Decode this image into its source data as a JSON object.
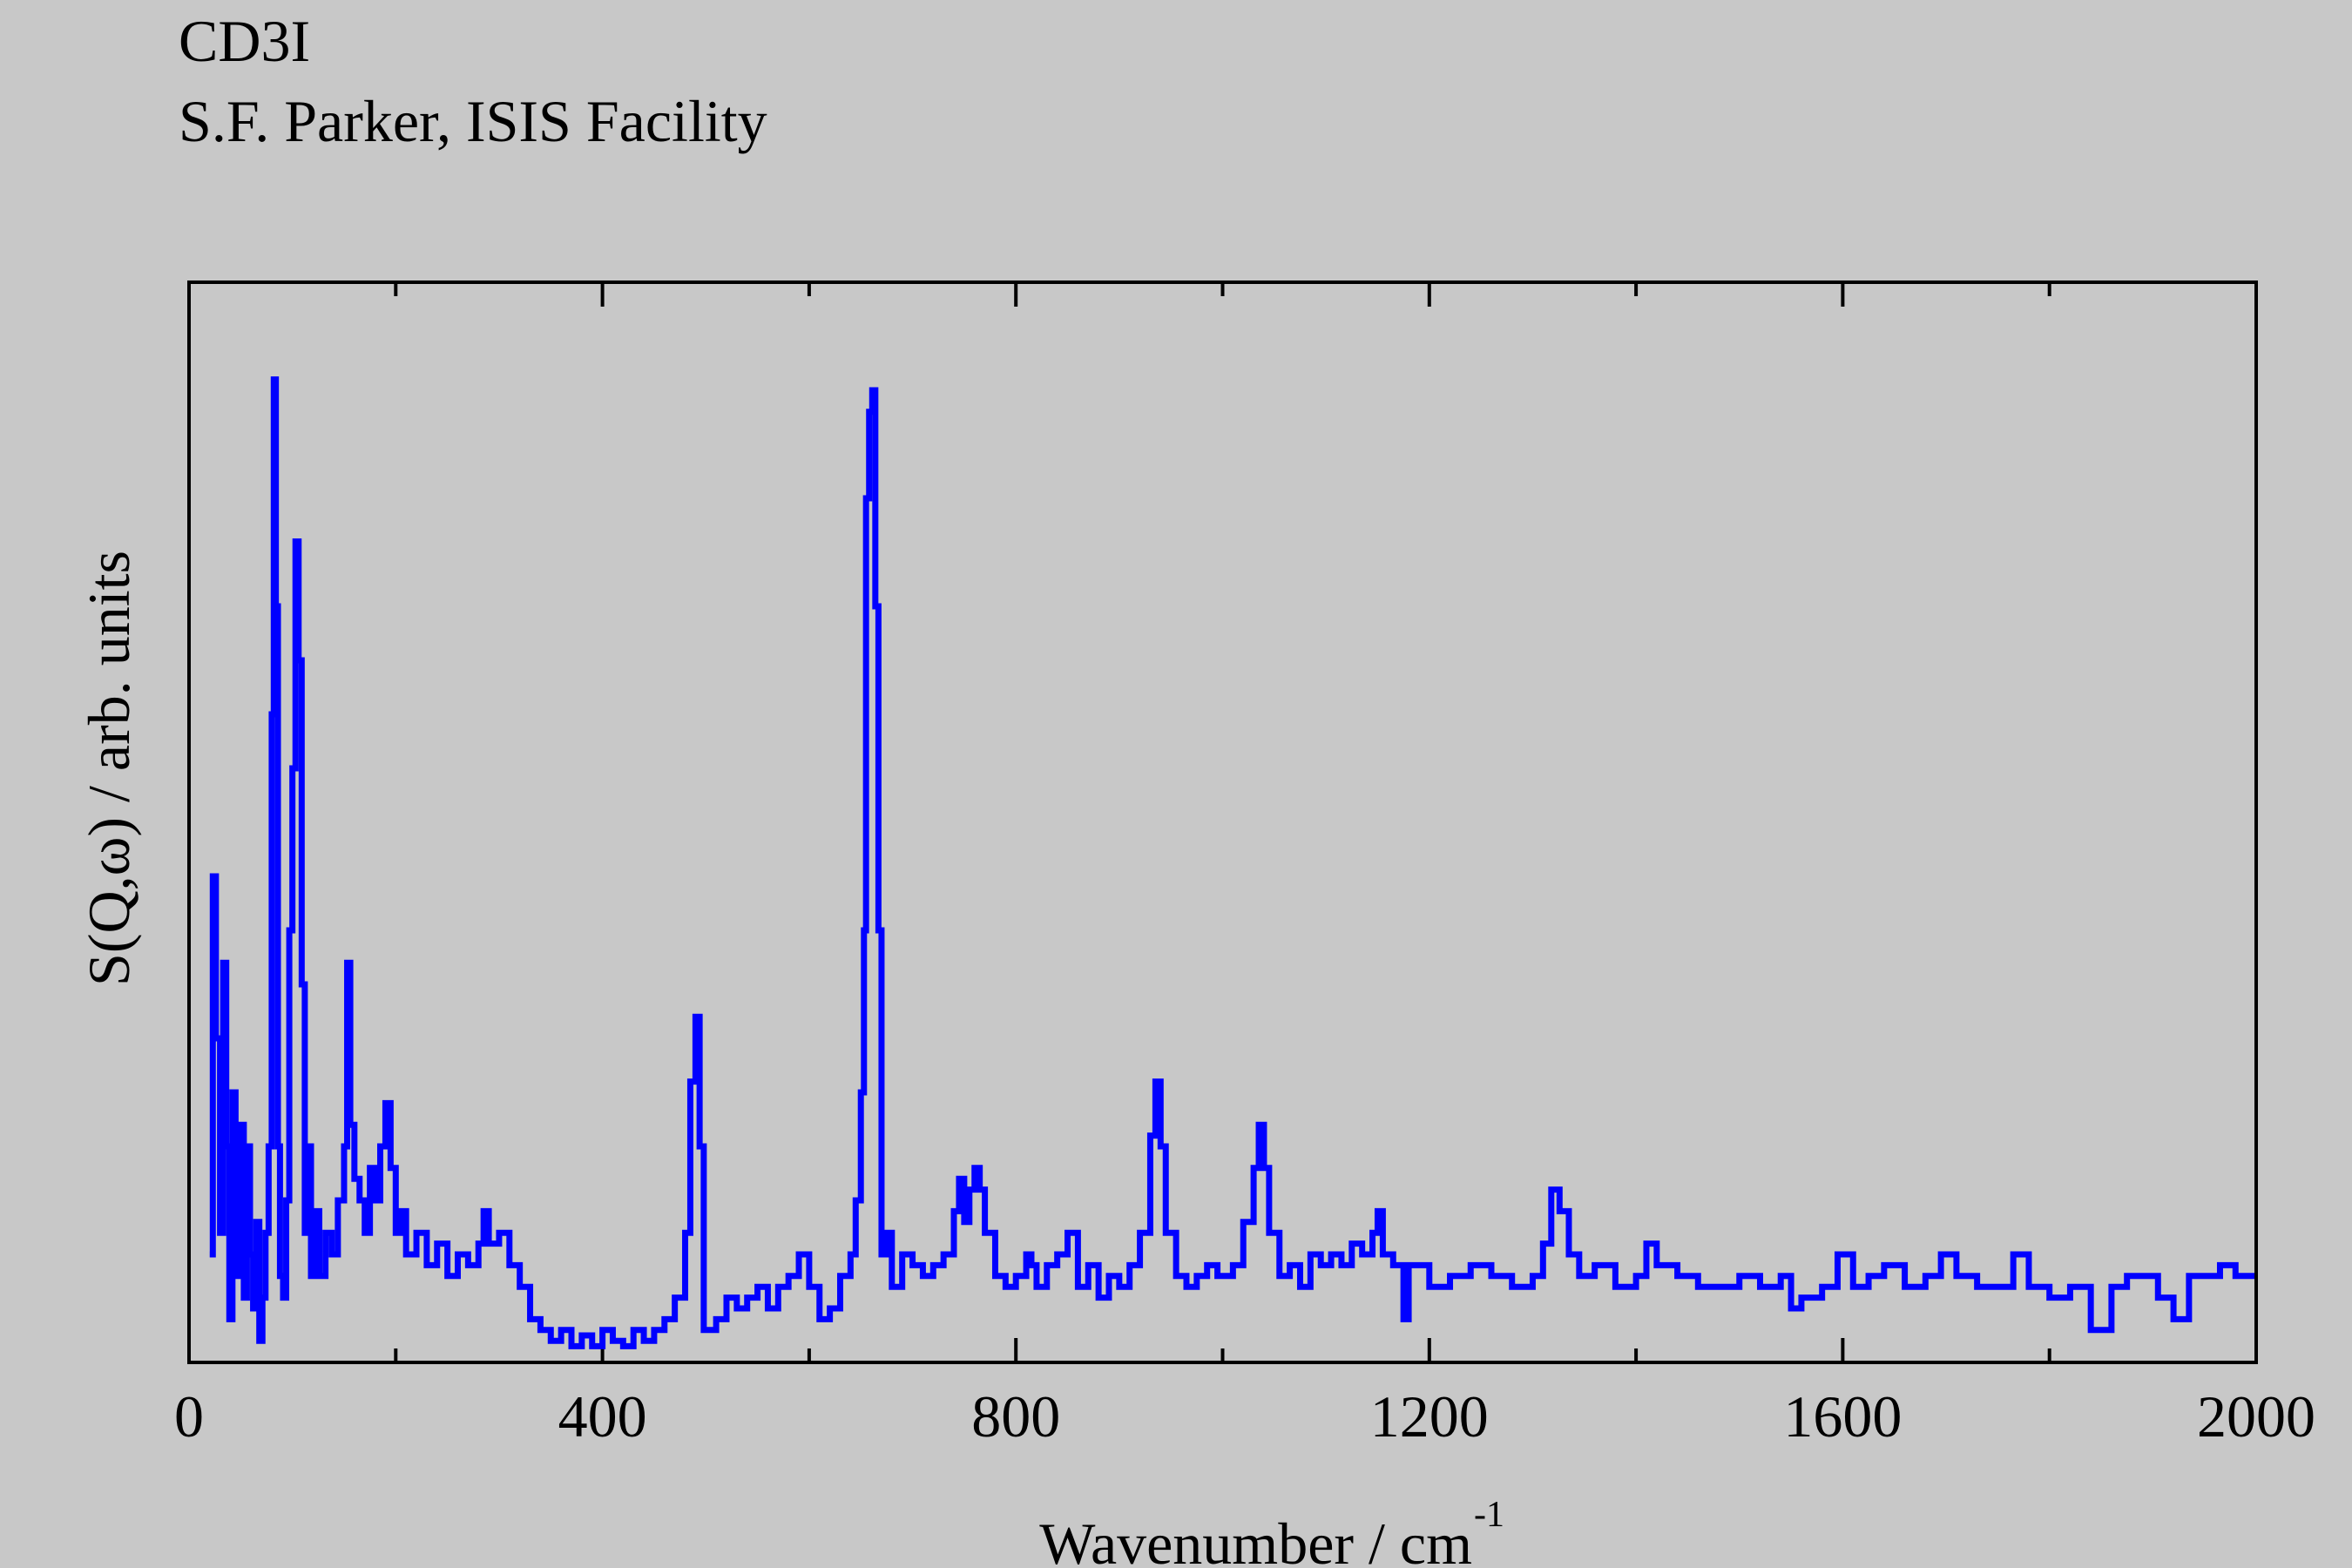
{
  "chart_data": {
    "type": "step",
    "title": "CD3I",
    "subtitle": "S.F. Parker, ISIS Facility",
    "x_label": "Wavenumber / cm",
    "x_label_sup": "-1",
    "y_label": "S(Q,ω) / arb. units",
    "color": "#0000ff",
    "xlim": [
      0,
      2000
    ],
    "xticks": [
      0,
      400,
      800,
      1200,
      1600,
      2000
    ],
    "xminorticks": [
      200,
      600,
      1000,
      1400,
      1800
    ],
    "ylim": [
      0,
      100
    ],
    "x": [
      20,
      23,
      26,
      30,
      33,
      36,
      39,
      42,
      45,
      48,
      50,
      53,
      56,
      59,
      62,
      65,
      68,
      71,
      74,
      77,
      80,
      82,
      84,
      86,
      88,
      91,
      94,
      97,
      100,
      103,
      106,
      109,
      112,
      115,
      118,
      121,
      126,
      132,
      138,
      144,
      150,
      153,
      156,
      160,
      165,
      170,
      175,
      180,
      185,
      190,
      195,
      200,
      205,
      210,
      220,
      230,
      240,
      250,
      260,
      270,
      280,
      285,
      290,
      300,
      310,
      320,
      330,
      340,
      350,
      360,
      370,
      380,
      390,
      400,
      410,
      420,
      430,
      440,
      450,
      460,
      470,
      480,
      485,
      490,
      494,
      498,
      510,
      520,
      530,
      540,
      550,
      560,
      570,
      580,
      590,
      600,
      610,
      620,
      630,
      640,
      645,
      650,
      653,
      655,
      658,
      661,
      664,
      667,
      670,
      675,
      680,
      690,
      700,
      710,
      720,
      730,
      740,
      745,
      750,
      755,
      760,
      765,
      770,
      780,
      790,
      800,
      810,
      815,
      820,
      830,
      840,
      850,
      860,
      870,
      880,
      890,
      900,
      910,
      920,
      930,
      935,
      940,
      945,
      955,
      965,
      975,
      985,
      995,
      1010,
      1020,
      1030,
      1035,
      1040,
      1045,
      1055,
      1065,
      1075,
      1085,
      1095,
      1105,
      1115,
      1125,
      1135,
      1145,
      1150,
      1155,
      1165,
      1175,
      1180,
      1200,
      1220,
      1240,
      1260,
      1280,
      1300,
      1310,
      1318,
      1326,
      1335,
      1345,
      1360,
      1380,
      1400,
      1410,
      1420,
      1440,
      1460,
      1480,
      1500,
      1520,
      1540,
      1550,
      1560,
      1580,
      1595,
      1610,
      1625,
      1640,
      1660,
      1680,
      1695,
      1710,
      1730,
      1750,
      1765,
      1780,
      1800,
      1820,
      1840,
      1860,
      1875,
      1890,
      1905,
      1920,
      1935,
      1950,
      1965,
      1980,
      2000
    ],
    "values": [
      10,
      45,
      30,
      12,
      37,
      20,
      4,
      25,
      8,
      14,
      22,
      6,
      20,
      10,
      5,
      13,
      2,
      6,
      12,
      20,
      60,
      91,
      70,
      20,
      8,
      6,
      15,
      40,
      55,
      76,
      65,
      35,
      12,
      20,
      8,
      14,
      8,
      12,
      10,
      15,
      20,
      37,
      22,
      17,
      15,
      12,
      18,
      15,
      20,
      24,
      18,
      12,
      14,
      10,
      12,
      9,
      11,
      8,
      10,
      9,
      11,
      14,
      11,
      12,
      9,
      7,
      4,
      3,
      2,
      3,
      1.5,
      2.5,
      1.5,
      3,
      2,
      1.5,
      3,
      2,
      3,
      4,
      6,
      12,
      26,
      32,
      20,
      3,
      4,
      6,
      5,
      6,
      7,
      5,
      7,
      8,
      10,
      7,
      4,
      5,
      8,
      10,
      15,
      25,
      40,
      80,
      88,
      90,
      70,
      40,
      10,
      12,
      7,
      10,
      9,
      8,
      9,
      10,
      14,
      17,
      13,
      16,
      18,
      16,
      12,
      8,
      7,
      8,
      10,
      9,
      7,
      9,
      10,
      12,
      7,
      9,
      6,
      8,
      7,
      9,
      12,
      21,
      26,
      20,
      12,
      8,
      7,
      8,
      9,
      8,
      9,
      13,
      18,
      22,
      18,
      12,
      8,
      9,
      7,
      10,
      9,
      10,
      9,
      11,
      10,
      12,
      14,
      10,
      9,
      4,
      9,
      7,
      8,
      9,
      8,
      7,
      8,
      11,
      16,
      14,
      10,
      8,
      9,
      7,
      8,
      11,
      9,
      8,
      7,
      7,
      8,
      7,
      8,
      5,
      6,
      7,
      10,
      7,
      8,
      9,
      7,
      8,
      10,
      8,
      7,
      7,
      10,
      7,
      6,
      7,
      3,
      7,
      8,
      8,
      6,
      4,
      8,
      8,
      9,
      8,
      8
    ]
  }
}
